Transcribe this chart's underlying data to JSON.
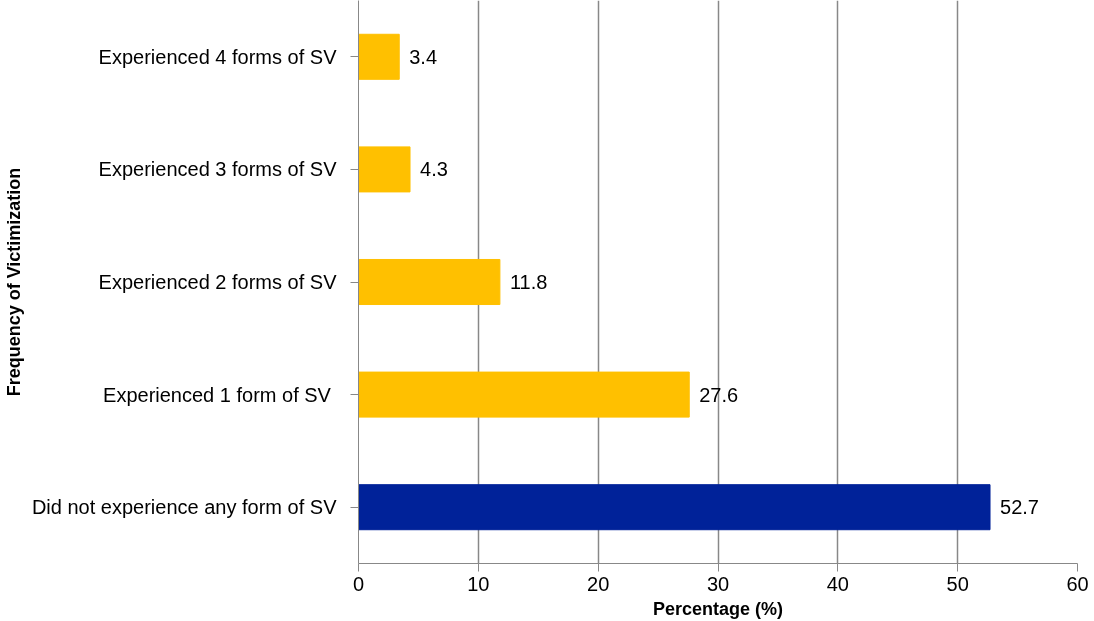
{
  "chart_data": {
    "type": "bar",
    "orientation": "horizontal",
    "xlabel": "Percentage (%)",
    "ylabel": "Frequency of Victimization",
    "categories": [
      "Experienced 4 forms of SV",
      "Experienced 3 forms of SV",
      "Experienced 2 forms of SV",
      "Experienced 1 form of SV ",
      "Did not experience any form of SV"
    ],
    "values": [
      3.4,
      4.3,
      11.8,
      27.6,
      52.7
    ],
    "colors": [
      "#ffc000",
      "#ffc000",
      "#ffc000",
      "#ffc000",
      "#002299"
    ],
    "xlim": [
      0,
      60
    ],
    "xticks": [
      0,
      10,
      20,
      30,
      40,
      50,
      60
    ],
    "grid": "x",
    "data_labels": true
  }
}
